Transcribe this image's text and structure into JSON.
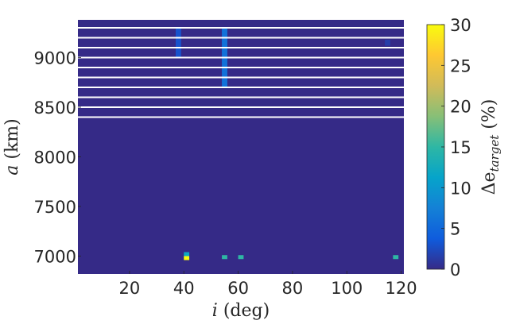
{
  "chart_data": {
    "type": "heatmap",
    "title": "",
    "xlabel": {
      "var": "i",
      "rest": " (deg)"
    },
    "ylabel": {
      "var": "a",
      "rest": " (km)"
    },
    "colorbar_label": {
      "prefix": "Δe",
      "sub": "target",
      "rest": " (%)"
    },
    "xlim": [
      1,
      121
    ],
    "ylim": [
      6820,
      9380
    ],
    "xticks": [
      20,
      40,
      60,
      80,
      100,
      120
    ],
    "yticks": [
      7000,
      7500,
      8000,
      8500,
      9000
    ],
    "clim": [
      0,
      30
    ],
    "cticks": [
      0,
      5,
      10,
      15,
      20,
      25,
      30
    ],
    "colormap": "parula",
    "background_value": 0,
    "gap_color": "#ffffff",
    "gap_rows_km": [
      8400,
      8500,
      8600,
      8700,
      8800,
      8900,
      9000,
      9100,
      9200,
      9300
    ],
    "cells": [
      {
        "i0": 37,
        "i1": 39,
        "a0": 9000,
        "a1": 9300,
        "value": 3
      },
      {
        "i0": 54,
        "i1": 56,
        "a0": 8700,
        "a1": 9300,
        "value": 6
      },
      {
        "i0": 114,
        "i1": 116,
        "a0": 9120,
        "a1": 9180,
        "value": 1.5
      },
      {
        "i0": 40,
        "i1": 42,
        "a0": 7000,
        "a1": 7040,
        "value": 12
      },
      {
        "i0": 40,
        "i1": 42,
        "a0": 6960,
        "a1": 7000,
        "value": 30
      },
      {
        "i0": 54,
        "i1": 56,
        "a0": 6970,
        "a1": 7010,
        "value": 15
      },
      {
        "i0": 60,
        "i1": 62,
        "a0": 6970,
        "a1": 7010,
        "value": 15
      },
      {
        "i0": 117,
        "i1": 119,
        "a0": 6970,
        "a1": 7010,
        "value": 15
      }
    ]
  },
  "colors": {
    "background_cell": "#352a87",
    "text": "#262626",
    "gap": "#ffffff"
  }
}
